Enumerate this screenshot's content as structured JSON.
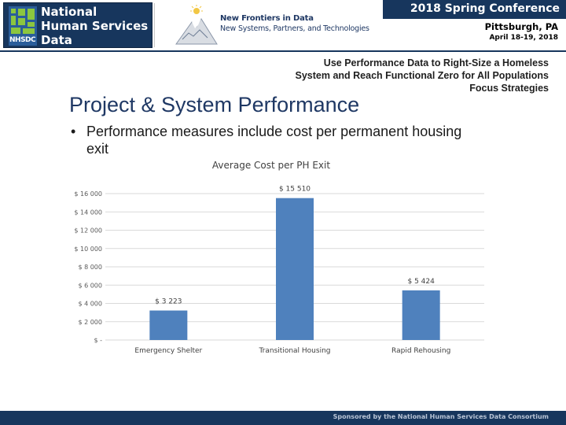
{
  "header": {
    "logo_lines": [
      "National",
      "Human Services",
      "Data Consortium"
    ],
    "logo_abbr": "NHSDC",
    "tagline_title": "New Frontiers in Data",
    "tagline_sub": "New Systems, Partners, and Technologies",
    "conference": "2018 Spring Conference",
    "city": "Pittsburgh, PA",
    "dates": "April 18-19, 2018"
  },
  "subtitle": {
    "line1": "Use Performance Data to Right-Size a Homeless",
    "line2": "System and Reach Functional Zero for All Populations",
    "line3": "Focus Strategies"
  },
  "slide": {
    "title": "Project & System Performance",
    "bullet_symbol": "•",
    "bullet": "Performance measures include cost per permanent housing exit"
  },
  "chart_data": {
    "type": "bar",
    "title": "Average Cost per PH Exit",
    "categories": [
      "Emergency Shelter",
      "Transitional Housing",
      "Rapid Rehousing"
    ],
    "values": [
      3223,
      15510,
      5424
    ],
    "data_labels": [
      "$ 3 223",
      "$ 15 510",
      "$ 5 424"
    ],
    "ylim": [
      0,
      16000
    ],
    "yticks": [
      0,
      2000,
      4000,
      6000,
      8000,
      10000,
      12000,
      14000,
      16000
    ],
    "ytick_labels": [
      "$ -",
      "$ 2 000",
      "$ 4 000",
      "$ 6 000",
      "$ 8 000",
      "$ 10 000",
      "$ 12 000",
      "$ 14 000",
      "$ 16 000"
    ],
    "grid": true,
    "legend": "none",
    "bar_color": "#4f81bd"
  },
  "footer": {
    "text": "Sponsored by the National Human Services Data Consortium"
  },
  "colors": {
    "navy": "#17365d",
    "title_blue": "#1f3864",
    "logo_green": "#8cc63f"
  }
}
